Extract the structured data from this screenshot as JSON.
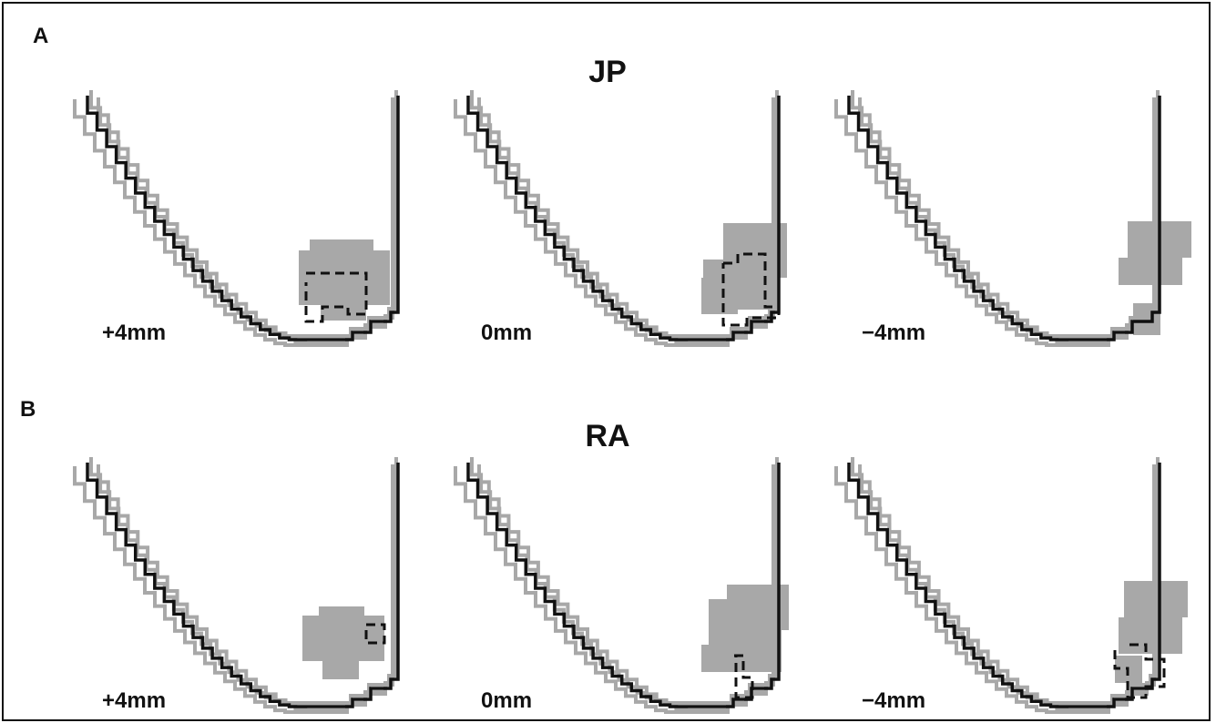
{
  "panels": [
    {
      "letter": "A",
      "subject": "JP",
      "slices": [
        {
          "label": "+4mm"
        },
        {
          "label": "0mm"
        },
        {
          "label": "−4mm"
        }
      ]
    },
    {
      "letter": "B",
      "subject": "RA",
      "slices": [
        {
          "label": "+4mm"
        },
        {
          "label": "0mm"
        },
        {
          "label": "−4mm"
        }
      ]
    }
  ],
  "colors": {
    "contour_highlight": "#111111",
    "contour_other": "#a8a8a8",
    "lesion_fill": "#a8a8a8",
    "roi_dashed": "#111111",
    "frame": "#111111"
  }
}
